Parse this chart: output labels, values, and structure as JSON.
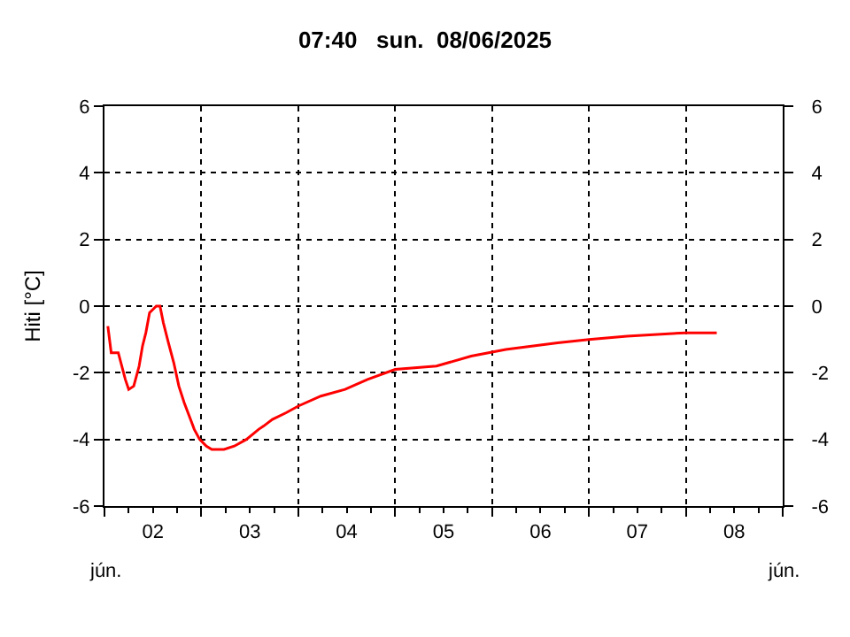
{
  "chart_data": {
    "type": "line",
    "title": "07:40   sun.  08/06/2025",
    "ylabel": "Hiti [°C]",
    "x": [
      "2025-06-02T00:50",
      "2025-06-02T01:40",
      "2025-06-02T03:25",
      "2025-06-02T05:10",
      "2025-06-02T06:00",
      "2025-06-02T07:15",
      "2025-06-02T08:35",
      "2025-06-02T09:25",
      "2025-06-02T10:15",
      "2025-06-02T11:10",
      "2025-06-02T12:00",
      "2025-06-02T12:50",
      "2025-06-02T13:45",
      "2025-06-02T14:35",
      "2025-06-02T15:50",
      "2025-06-02T17:10",
      "2025-06-02T18:25",
      "2025-06-02T19:45",
      "2025-06-02T21:00",
      "2025-06-02T22:15",
      "2025-06-02T23:35",
      "2025-06-03T01:15",
      "2025-06-03T02:35",
      "2025-06-03T05:35",
      "2025-06-03T08:10",
      "2025-06-03T11:10",
      "2025-06-03T14:10",
      "2025-06-03T15:25",
      "2025-06-03T17:35",
      "2025-06-03T21:00",
      "2025-06-04T00:00",
      "2025-06-04T05:35",
      "2025-06-04T11:35",
      "2025-06-04T17:10",
      "2025-06-05T00:00",
      "2025-06-05T10:15",
      "2025-06-05T18:50",
      "2025-06-06T03:25",
      "2025-06-06T16:15",
      "2025-06-07T00:00",
      "2025-06-07T09:25",
      "2025-06-08T00:00",
      "2025-06-08T07:40"
    ],
    "series": [
      {
        "color": "#ff0000",
        "values": [
          -0.6,
          -1.4,
          -1.4,
          -2.2,
          -2.5,
          -2.4,
          -1.8,
          -1.2,
          -0.8,
          -0.2,
          -0.1,
          0,
          0,
          -0.5,
          -1.1,
          -1.7,
          -2.4,
          -2.9,
          -3.3,
          -3.7,
          -4,
          -4.2,
          -4.3,
          -4.3,
          -4.2,
          -4,
          -3.7,
          -3.6,
          -3.4,
          -3.2,
          -3,
          -2.7,
          -2.5,
          -2.2,
          -1.9,
          -1.8,
          -1.5,
          -1.3,
          -1.1,
          -1,
          -0.9,
          -0.8,
          -0.8
        ]
      }
    ],
    "xlim": [
      "2025-06-02T00:00",
      "2025-06-09T00:00"
    ],
    "xticks": [
      {
        "value": "2025-06-02T00:00",
        "label": null
      },
      {
        "value": "2025-06-02T12:00",
        "label": "02"
      },
      {
        "value": "2025-06-03T00:00",
        "label": null
      },
      {
        "value": "2025-06-03T12:00",
        "label": "03"
      },
      {
        "value": "2025-06-04T00:00",
        "label": null
      },
      {
        "value": "2025-06-04T12:00",
        "label": "04"
      },
      {
        "value": "2025-06-05T00:00",
        "label": null
      },
      {
        "value": "2025-06-05T12:00",
        "label": "05"
      },
      {
        "value": "2025-06-06T00:00",
        "label": null
      },
      {
        "value": "2025-06-06T12:00",
        "label": "06"
      },
      {
        "value": "2025-06-07T00:00",
        "label": null
      },
      {
        "value": "2025-06-07T12:00",
        "label": "07"
      },
      {
        "value": "2025-06-08T00:00",
        "label": null
      },
      {
        "value": "2025-06-08T12:00",
        "label": "08"
      },
      {
        "value": "2025-06-09T00:00",
        "label": null
      }
    ],
    "ylim": [
      -6,
      6
    ],
    "yticks": [
      -6,
      -4,
      -2,
      0,
      2,
      4,
      6
    ],
    "y2lim": [
      -6,
      6
    ],
    "y2ticks": [
      -6,
      -4,
      -2,
      0,
      2,
      4,
      6
    ],
    "annotations": [
      "jún.",
      "jún."
    ],
    "grid": true,
    "marker": "none",
    "line_style": "solid"
  }
}
